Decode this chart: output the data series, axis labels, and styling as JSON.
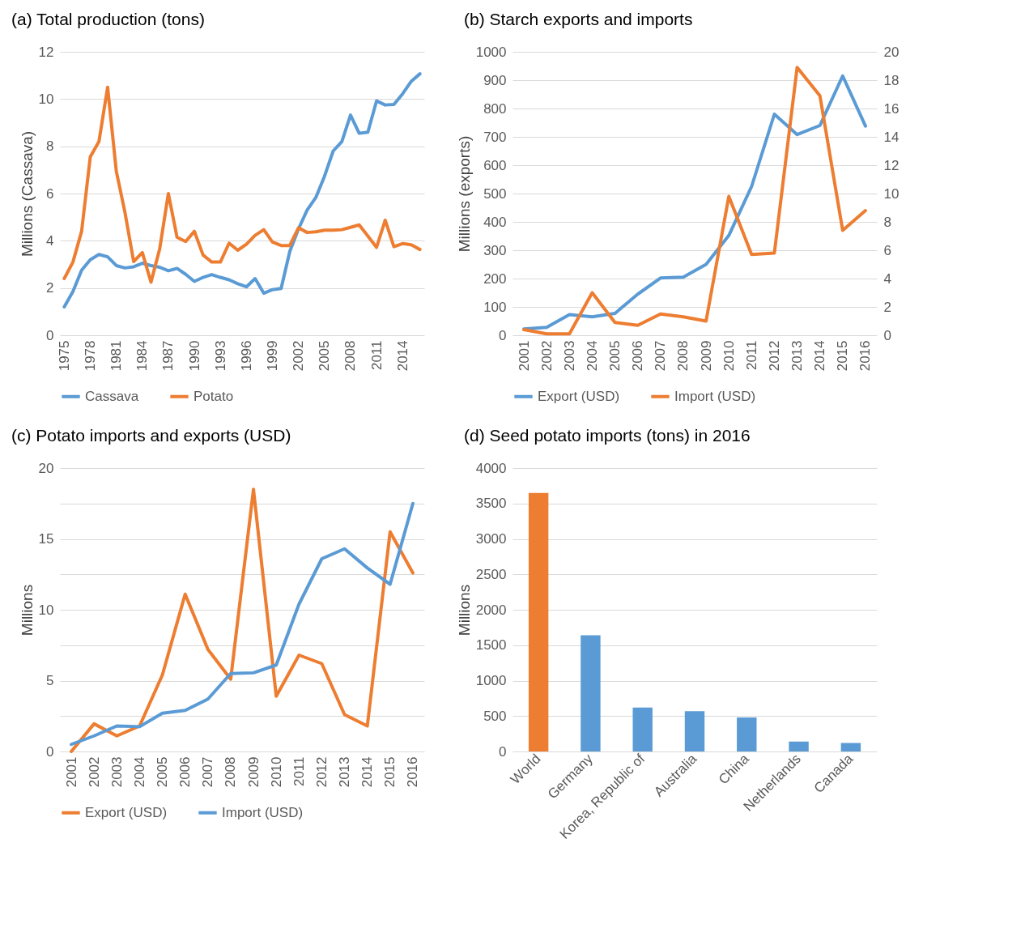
{
  "chart_data": [
    {
      "type": "line",
      "title": "(a) Total production (tons)",
      "ylabel": "Millions (Cassava)",
      "categories": [
        "1975",
        null,
        null,
        "1978",
        null,
        null,
        "1981",
        null,
        null,
        "1984",
        null,
        null,
        "1987",
        null,
        null,
        "1990",
        null,
        null,
        "1993",
        null,
        null,
        "1996",
        null,
        null,
        "1999",
        null,
        null,
        "2002",
        null,
        null,
        "2005",
        null,
        null,
        "2008",
        null,
        null,
        "2011",
        null,
        null,
        "2014",
        null,
        null
      ],
      "series": [
        {
          "name": "Cassava",
          "color": "#5b9bd5",
          "values": [
            1.2,
            1.85,
            2.75,
            3.2,
            3.42,
            3.32,
            2.95,
            2.85,
            2.9,
            3.05,
            2.95,
            2.88,
            2.73,
            2.83,
            2.58,
            2.28,
            2.45,
            2.57,
            2.45,
            2.35,
            2.18,
            2.05,
            2.4,
            1.78,
            1.93,
            1.98,
            3.55,
            4.5,
            5.3,
            5.83,
            6.73,
            7.8,
            8.2,
            9.32,
            8.55,
            8.6,
            9.92,
            9.75,
            9.77,
            10.22,
            10.75,
            11.07
          ]
        },
        {
          "name": "Potato",
          "color": "#ed7d31",
          "values": [
            2.4,
            3.1,
            4.4,
            7.55,
            8.2,
            10.5,
            6.95,
            5.2,
            3.12,
            3.5,
            2.25,
            3.65,
            6.0,
            4.15,
            3.97,
            4.4,
            3.4,
            3.1,
            3.1,
            3.9,
            3.6,
            3.85,
            4.23,
            4.47,
            3.95,
            3.8,
            3.8,
            4.55,
            4.35,
            4.38,
            4.45,
            4.45,
            4.47,
            4.57,
            4.67,
            4.2,
            3.72,
            4.87,
            3.75,
            3.88,
            3.83,
            3.63
          ]
        }
      ],
      "ylim": [
        0,
        12
      ],
      "yticks": [
        0,
        2,
        4,
        6,
        8,
        10,
        12
      ],
      "grid": "y",
      "legend": "bottom",
      "marker": "none",
      "line_style": "solid"
    },
    {
      "type": "line",
      "title": "(b) Starch exports and imports",
      "ylabel": "Millions (exports)",
      "categories": [
        "2001",
        "2002",
        "2003",
        "2004",
        "2005",
        "2006",
        "2007",
        "2008",
        "2009",
        "2010",
        "2011",
        "2012",
        "2013",
        "2014",
        "2015",
        "2016"
      ],
      "series": [
        {
          "name": "Export (USD)",
          "color": "#5b9bd5",
          "values": [
            22,
            28,
            73,
            65,
            77,
            145,
            202,
            205,
            250,
            352,
            525,
            780,
            708,
            740,
            915,
            738
          ]
        },
        {
          "name": "Import (USD)",
          "color": "#ed7d31",
          "axis": "y2",
          "values": [
            0.4,
            0.1,
            0.1,
            3.0,
            0.9,
            0.7,
            1.5,
            1.3,
            1.0,
            9.8,
            5.7,
            5.8,
            18.9,
            16.9,
            7.4,
            8.8
          ]
        }
      ],
      "ylim": [
        0,
        1000
      ],
      "yticks": [
        0,
        100,
        200,
        300,
        400,
        500,
        600,
        700,
        800,
        900,
        1000
      ],
      "y2lim": [
        0,
        20
      ],
      "y2ticks": [
        0,
        2,
        4,
        6,
        8,
        10,
        12,
        14,
        16,
        18,
        20
      ],
      "grid": "y",
      "legend": "bottom",
      "marker": "none",
      "line_style": "solid"
    },
    {
      "type": "line",
      "title": "(c) Potato imports and exports (USD)",
      "ylabel": "Millions",
      "categories": [
        "2001",
        "2002",
        "2003",
        "2004",
        "2005",
        "2006",
        "2007",
        "2008",
        "2009",
        "2010",
        "2011",
        "2012",
        "2013",
        "2014",
        "2015",
        "2016"
      ],
      "series": [
        {
          "name": "Export (USD)",
          "color": "#ed7d31",
          "values": [
            0.0,
            1.95,
            1.1,
            1.8,
            5.4,
            11.1,
            7.2,
            5.1,
            18.5,
            3.9,
            6.8,
            6.2,
            2.6,
            1.8,
            15.5,
            12.6
          ]
        },
        {
          "name": "Import (USD)",
          "color": "#5b9bd5",
          "values": [
            0.5,
            1.1,
            1.8,
            1.75,
            2.7,
            2.9,
            3.7,
            5.5,
            5.55,
            6.1,
            10.4,
            13.6,
            14.3,
            12.95,
            11.8,
            17.5
          ]
        }
      ],
      "ylim": [
        0,
        20
      ],
      "yticks": [
        0,
        {
          "value": 2.5,
          "label": null
        },
        5,
        {
          "value": 7.5,
          "label": null
        },
        10,
        {
          "value": 12.5,
          "label": null
        },
        15,
        {
          "value": 17.5,
          "label": null
        },
        20
      ],
      "grid": "y",
      "legend": "bottom",
      "marker": "none",
      "line_style": "solid"
    },
    {
      "type": "bar",
      "title": "(d) Seed potato imports (tons) in 2016",
      "ylabel": "Millions",
      "categories": [
        "World",
        "Germany",
        "Korea, Republic of",
        "Australia",
        "China",
        "Netherlands",
        "Canada"
      ],
      "values": [
        3650,
        1640,
        620,
        570,
        480,
        140,
        120
      ],
      "colors": [
        "#ed7d31",
        "#5b9bd5",
        "#5b9bd5",
        "#5b9bd5",
        "#5b9bd5",
        "#5b9bd5",
        "#5b9bd5"
      ],
      "ylim": [
        0,
        4000
      ],
      "yticks": [
        0,
        500,
        1000,
        1500,
        2000,
        2500,
        3000,
        3500,
        4000
      ],
      "grid": "y"
    }
  ]
}
